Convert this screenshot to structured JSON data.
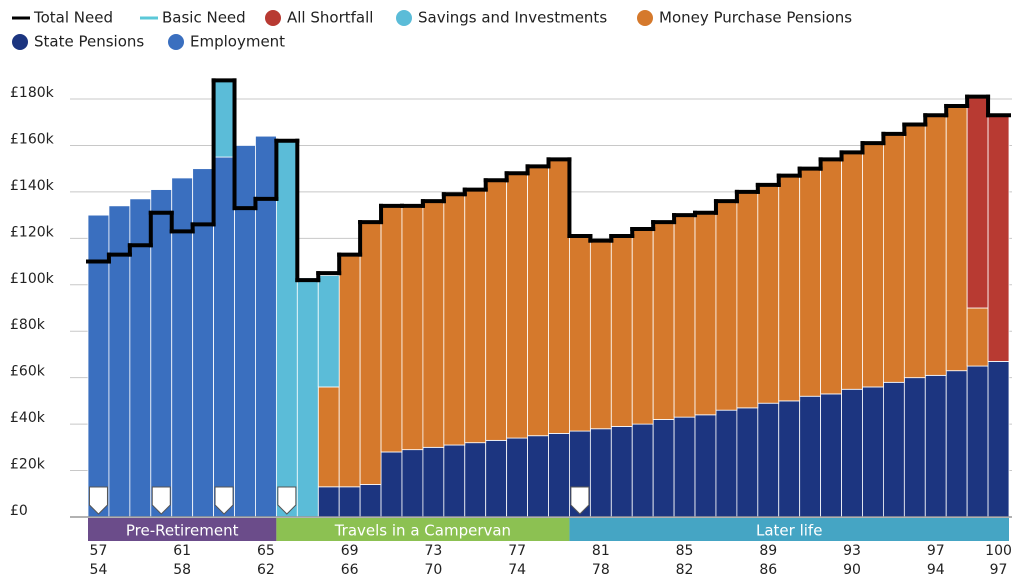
{
  "chart_data": {
    "type": "stacked_bar",
    "categories": [
      "57",
      null,
      null,
      null,
      "61",
      null,
      null,
      null,
      "65",
      null,
      null,
      null,
      "69",
      null,
      null,
      null,
      "73",
      null,
      null,
      null,
      "77",
      null,
      null,
      null,
      "81",
      null,
      null,
      null,
      "85",
      null,
      null,
      null,
      "89",
      null,
      null,
      null,
      "93",
      null,
      null,
      null,
      "97",
      null,
      null,
      "100"
    ],
    "categories2": [
      "54",
      null,
      null,
      null,
      "58",
      null,
      null,
      null,
      "62",
      null,
      null,
      null,
      "66",
      null,
      null,
      null,
      "70",
      null,
      null,
      null,
      "74",
      null,
      null,
      null,
      "78",
      null,
      null,
      null,
      "82",
      null,
      null,
      null,
      "86",
      null,
      null,
      null,
      "90",
      null,
      null,
      null,
      "94",
      null,
      null,
      "97"
    ],
    "series": [
      {
        "name": "All Shortfall",
        "color": "#b83a32",
        "values": [
          null,
          null,
          null,
          null,
          null,
          null,
          null,
          null,
          null,
          null,
          null,
          null,
          null,
          null,
          null,
          null,
          null,
          null,
          null,
          null,
          null,
          null,
          null,
          null,
          null,
          null,
          null,
          null,
          null,
          null,
          null,
          null,
          null,
          null,
          null,
          null,
          null,
          null,
          null,
          null,
          null,
          null,
          91,
          106
        ]
      },
      {
        "name": "Savings and Investments",
        "color": "#5bbcd8",
        "values": [
          null,
          null,
          null,
          null,
          null,
          null,
          33,
          null,
          null,
          162,
          103,
          48,
          null,
          null,
          null,
          null,
          null,
          null,
          null,
          null,
          null,
          null,
          null,
          null,
          null,
          null,
          null,
          null,
          null,
          null,
          null,
          null,
          null,
          null,
          null,
          null,
          null,
          null,
          null,
          null,
          null,
          null,
          null,
          null
        ]
      },
      {
        "name": "Money Purchase Pensions",
        "color": "#d5792c",
        "values": [
          null,
          null,
          null,
          null,
          null,
          null,
          null,
          null,
          null,
          null,
          null,
          43,
          100,
          113,
          106,
          105,
          106,
          108,
          109,
          112,
          114,
          116,
          118,
          84,
          81,
          82,
          84,
          85,
          87,
          87,
          90,
          93,
          94,
          97,
          98,
          101,
          102,
          105,
          107,
          109,
          112,
          114,
          25,
          null
        ]
      },
      {
        "name": "State Pensions",
        "color": "#1c3580",
        "values": [
          null,
          null,
          null,
          null,
          null,
          null,
          null,
          null,
          null,
          null,
          null,
          13,
          13,
          14,
          28,
          29,
          30,
          31,
          32,
          33,
          34,
          35,
          36,
          37,
          38,
          39,
          40,
          42,
          43,
          44,
          46,
          47,
          49,
          50,
          52,
          53,
          55,
          56,
          58,
          60,
          61,
          63,
          65,
          67
        ]
      },
      {
        "name": "Employment",
        "color": "#3a6fbf",
        "values": [
          130,
          134,
          137,
          141,
          146,
          150,
          155,
          160,
          164,
          null,
          null,
          null,
          null,
          null,
          null,
          null,
          null,
          null,
          null,
          null,
          null,
          null,
          null,
          null,
          null,
          null,
          null,
          null,
          null,
          null,
          null,
          null,
          null,
          null,
          null,
          null,
          null,
          null,
          null,
          null,
          null,
          null,
          null,
          null
        ]
      }
    ],
    "lines": [
      {
        "name": "Total Need",
        "color": "#000000",
        "values": [
          110,
          113,
          117,
          131,
          123,
          126,
          188,
          133,
          137,
          162,
          102,
          105,
          113,
          127,
          134,
          134,
          136,
          139,
          141,
          145,
          148,
          151,
          154,
          121,
          119,
          121,
          124,
          127,
          130,
          131,
          136,
          140,
          143,
          147,
          150,
          154,
          157,
          161,
          165,
          169,
          173,
          177,
          181,
          173
        ]
      },
      {
        "name": "Basic Need",
        "color": "#5bc8d8"
      }
    ],
    "ylim": [
      0,
      180
    ],
    "yticks": [
      {
        "value": 0,
        "label": "£0"
      },
      {
        "value": 20,
        "label": "£20k"
      },
      {
        "value": 40,
        "label": "£40k"
      },
      {
        "value": 60,
        "label": "£60k"
      },
      {
        "value": 80,
        "label": "£80k"
      },
      {
        "value": 100,
        "label": "£100k"
      },
      {
        "value": 120,
        "label": "£120k"
      },
      {
        "value": 140,
        "label": "£140k"
      },
      {
        "value": 160,
        "label": "£160k"
      },
      {
        "value": 180,
        "label": "£180k"
      }
    ],
    "grid": true,
    "phases": [
      {
        "label": "Pre-Retirement",
        "first": 0,
        "last": 8,
        "color": "#6b4c8a"
      },
      {
        "label": "Travels in a Campervan",
        "first": 9,
        "last": 22,
        "color": "#8cc152"
      },
      {
        "label": "Later life",
        "first": 23,
        "last": 43,
        "color": "#45a5c4"
      }
    ],
    "event_markers": [
      0,
      3,
      6,
      9,
      23
    ]
  }
}
